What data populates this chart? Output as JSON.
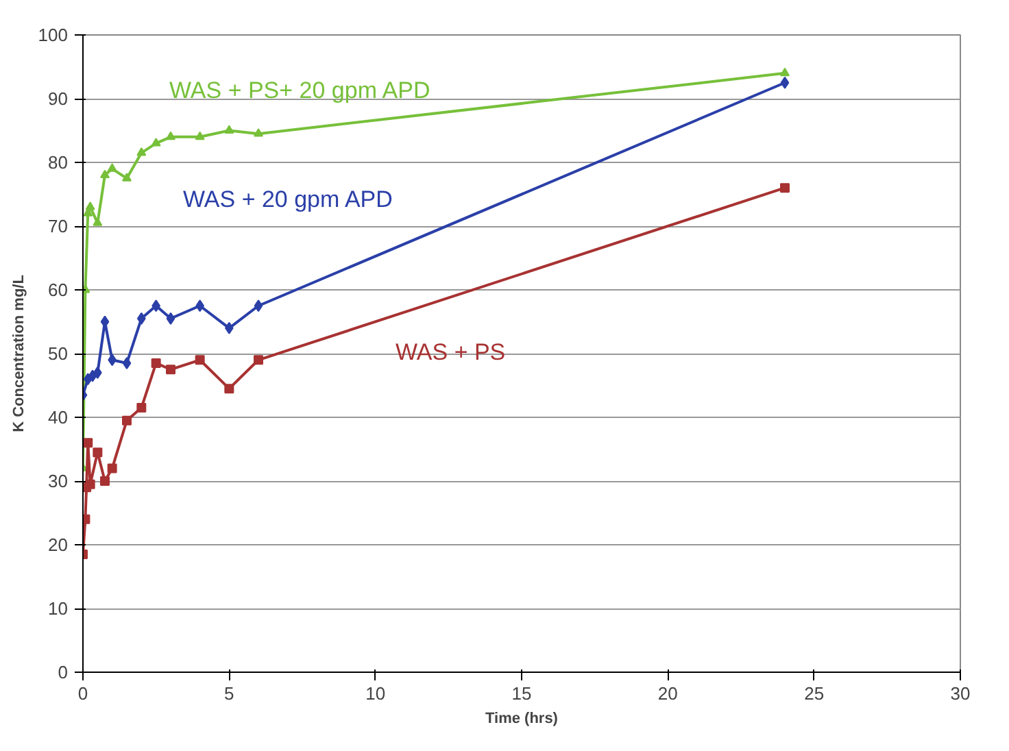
{
  "chart_data": {
    "type": "line",
    "xlabel": "Time (hrs)",
    "ylabel": "K Concentration mg/L",
    "xlim": [
      0,
      30
    ],
    "xticks": [
      0,
      5,
      10,
      15,
      20,
      25,
      30
    ],
    "ylim": [
      0,
      100
    ],
    "yticks": [
      0,
      10,
      20,
      30,
      40,
      50,
      60,
      70,
      80,
      90,
      100
    ],
    "grid": "y",
    "line_style": "solid",
    "series": [
      {
        "name": "WAS + PS+ 20 gpm APD",
        "color": "#77c03a",
        "marker": "triangle",
        "x": [
          0,
          0.08,
          0.17,
          0.25,
          0.5,
          0.75,
          1,
          1.5,
          2,
          2.5,
          3,
          4,
          5,
          6,
          24
        ],
        "values": [
          32,
          60,
          72,
          73,
          70.5,
          78,
          79,
          77.5,
          81.5,
          83,
          84,
          84,
          85,
          84.5,
          94
        ]
      },
      {
        "name": "WAS + 20 gpm APD",
        "color": "#2a3fa8",
        "marker": "diamond",
        "x": [
          0,
          0.17,
          0.33,
          0.5,
          0.75,
          1,
          1.5,
          2,
          2.5,
          3,
          4,
          5,
          6,
          24
        ],
        "values": [
          43.5,
          46,
          46.5,
          47,
          55,
          49,
          48.5,
          55.5,
          57.5,
          55.5,
          57.5,
          54,
          57.5,
          92.5
        ]
      },
      {
        "name": "WAS + PS",
        "color": "#a83232",
        "marker": "square",
        "x": [
          0,
          0.08,
          0.12,
          0.17,
          0.25,
          0.5,
          0.75,
          1,
          1.5,
          2,
          2.5,
          3,
          4,
          5,
          6,
          24
        ],
        "values": [
          18.5,
          24,
          29,
          36,
          29.5,
          34.5,
          30,
          32,
          39.5,
          41.5,
          48.5,
          47.5,
          49,
          44.5,
          49,
          76
        ]
      }
    ]
  }
}
